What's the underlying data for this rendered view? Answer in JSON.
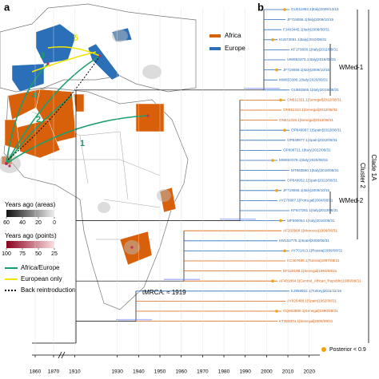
{
  "panel_a": {
    "label": "a",
    "legend": [
      {
        "name": "Africa",
        "color": "#d9600b"
      },
      {
        "name": "Europe",
        "color": "#2a6fb8"
      }
    ],
    "route_numbers": [
      "1",
      "2",
      "3",
      "4",
      "5"
    ],
    "colorbar_areas": {
      "title": "Years ago (areas)",
      "ticks": [
        60,
        40,
        20,
        0
      ]
    },
    "colorbar_points": {
      "title": "Years ago (points)",
      "ticks": [
        100,
        75,
        50,
        25
      ]
    },
    "line_legend": [
      {
        "name": "Africa/Europe",
        "color": "#1a9e6a"
      },
      {
        "name": "European only",
        "color": "#f2e600"
      },
      {
        "name": "Back reintroduction",
        "color": "#000000"
      }
    ]
  },
  "panel_b": {
    "label": "b",
    "clusters": [
      "WMed-1",
      "WMed-2"
    ],
    "bars": [
      "Cluster 2",
      "Clade 1A"
    ],
    "tmrca": "tMRCA: ≈ 1919",
    "posterior": "Posterior < 0.9",
    "posterior_color": "#f0a30a",
    "axis_ticks": [
      1860,
      1870,
      1910,
      1930,
      1940,
      1950,
      1960,
      1970,
      1980,
      1990,
      2000,
      2010,
      2020
    ],
    "tips": [
      {
        "label": "GU011992.1|Italy|2009/12/15",
        "region": "Europe"
      },
      {
        "label": "JF719055.1|Italy|2009/10/15",
        "region": "Europe"
      },
      {
        "label": "FJ403445.1|Italy|2008/08/31",
        "region": "Europe"
      },
      {
        "label": "KU573081.1|Italy|2010/08/31",
        "region": "Europe"
      },
      {
        "label": "KF179800.1|Italy|2011/08/31",
        "region": "Europe"
      },
      {
        "label": "MW853373.1|Italy|2019/08/31",
        "region": "Europe"
      },
      {
        "label": "JF719069.1|Italy|2009/10/15",
        "region": "Europe"
      },
      {
        "label": "MW853380.1|Italy|2020/08/31",
        "region": "Europe"
      },
      {
        "label": "OU663566.1|Italy|2019/08/31",
        "region": "Europe"
      },
      {
        "label": "ON611321.1|Senegal|2012/08/31",
        "region": "Africa"
      },
      {
        "label": "ON611310.1|Senegal|2012/08/31",
        "region": "Africa"
      },
      {
        "label": "ON611318.1|Senegal|2013/08/31",
        "region": "Africa"
      },
      {
        "label": "OP849987.1|Spain|2022/08/31",
        "region": "Europe"
      },
      {
        "label": "OP849977.1|Spain|2022/08/31",
        "region": "Europe"
      },
      {
        "label": "OP898721.1|Italy|2022/08/31",
        "region": "Europe"
      },
      {
        "label": "MW853379.1|Italy|2020/08/31",
        "region": "Europe"
      },
      {
        "label": "MT863560.1|Italy|2018/08/31",
        "region": "Europe"
      },
      {
        "label": "OP849952.1|Spain|2022/08/31",
        "region": "Europe"
      },
      {
        "label": "JF719065.1|Italy|2009/10/15",
        "region": "Europe"
      },
      {
        "label": "AY278987.1|Portugal|2004/08/31",
        "region": "Europe"
      },
      {
        "label": "KF647261.1|Italy|2013/08/31",
        "region": "Europe"
      },
      {
        "label": "MF590054.1|Italy|2016/08/31",
        "region": "Europe"
      },
      {
        "label": "AF260968.1|Morocco|1996/08/31",
        "region": "Africa"
      },
      {
        "label": "HM152775.1|Israel|2000/08/31",
        "region": "Europe"
      },
      {
        "label": "AY701413.1|Russia|1999/08/31",
        "region": "Europe"
      },
      {
        "label": "KC407666.1|Tunisia|1997/08/31",
        "region": "Africa"
      },
      {
        "label": "EF429198.1|Senegal|1993/08/31",
        "region": "Africa"
      },
      {
        "label": "AF481864.1|Central_African_Republic|1989/08/31",
        "region": "Africa"
      },
      {
        "label": "KJ958922.1|Turkey|2011/11/16",
        "region": "Europe"
      },
      {
        "label": "AY926488.1|Spain|1962/08/31",
        "region": "Africa"
      },
      {
        "label": "GQ903680.1|Senegal|1990/08/31",
        "region": "Africa"
      },
      {
        "label": "KT359374.1|Senegal|2005/08/31",
        "region": "Africa"
      }
    ]
  }
}
